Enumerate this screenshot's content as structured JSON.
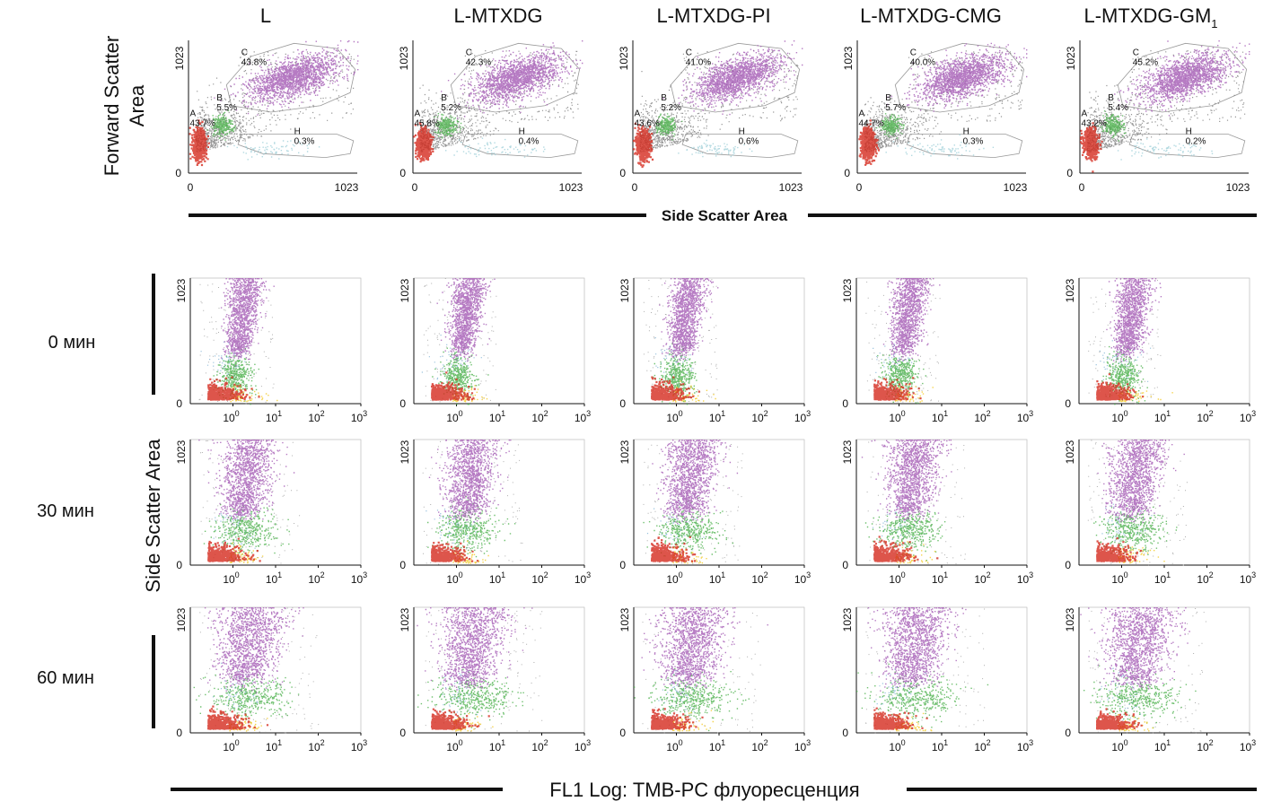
{
  "figure": {
    "headers": [
      "L",
      "L-MTXDG",
      "L-MTXDG-PI",
      "L-MTXDG-CMG",
      "L-MTXDG-GM"
    ],
    "last_header_subscript": "1",
    "scatter_ylabel_line1": "Forward Scatter",
    "scatter_ylabel_line2": "Area",
    "scatter_xlabel": "Side Scatter Area",
    "fl_ylabel": "Side Scatter Area",
    "fl_xlabel": "FL1 Log: TMB-PC флуоресценция",
    "time_rows": [
      "0 мин",
      "30 мин",
      "60 мин"
    ]
  },
  "chart_data": [
    {
      "type": "scatter",
      "panel": "fsc-ssc",
      "x": {
        "label": "Side Scatter Area",
        "range": [
          0,
          1023
        ],
        "ticks": [
          "0",
          "1023"
        ]
      },
      "y": {
        "label": "Forward Scatter Area",
        "range": [
          0,
          1023
        ],
        "ticks": [
          "0",
          "1023"
        ]
      },
      "conditions": [
        {
          "name": "L",
          "gates": [
            {
              "label": "A",
              "percent": "43.7%"
            },
            {
              "label": "B",
              "percent": "5.5%"
            },
            {
              "label": "C",
              "percent": "43.8%"
            },
            {
              "label": "H",
              "percent": "0.3%"
            }
          ]
        },
        {
          "name": "L-MTXDG",
          "gates": [
            {
              "label": "A",
              "percent": "45.8%"
            },
            {
              "label": "B",
              "percent": "5.2%"
            },
            {
              "label": "C",
              "percent": "42.3%"
            },
            {
              "label": "H",
              "percent": "0.4%"
            }
          ]
        },
        {
          "name": "L-MTXDG-PI",
          "gates": [
            {
              "label": "A",
              "percent": "43.6%"
            },
            {
              "label": "B",
              "percent": "5.2%"
            },
            {
              "label": "C",
              "percent": "41.0%"
            },
            {
              "label": "H",
              "percent": "0.6%"
            }
          ]
        },
        {
          "name": "L-MTXDG-CMG",
          "gates": [
            {
              "label": "A",
              "percent": "44.7%"
            },
            {
              "label": "B",
              "percent": "5.7%"
            },
            {
              "label": "C",
              "percent": "40.0%"
            },
            {
              "label": "H",
              "percent": "0.3%"
            }
          ]
        },
        {
          "name": "L-MTXDG-GM1",
          "gates": [
            {
              "label": "A",
              "percent": "43.2%"
            },
            {
              "label": "B",
              "percent": "5.4%"
            },
            {
              "label": "C",
              "percent": "45.2%"
            },
            {
              "label": "H",
              "percent": "0.2%"
            }
          ]
        }
      ],
      "populations": [
        {
          "gate": "A",
          "color": "#d42a1e",
          "center": [
            60,
            230
          ],
          "spread": [
            40,
            110
          ]
        },
        {
          "gate": "B",
          "color": "#4bb04b",
          "center": [
            200,
            370
          ],
          "spread": [
            60,
            70
          ]
        },
        {
          "gate": "C",
          "color": "#a45ab4",
          "center": [
            630,
            740
          ],
          "spread": [
            230,
            150
          ]
        },
        {
          "gate": "H",
          "color": "#9fcfd8",
          "center": [
            500,
            190
          ],
          "spread": [
            250,
            60
          ]
        }
      ]
    },
    {
      "type": "scatter",
      "panel": "fl1-ssc",
      "x": {
        "label": "FL1 Log: TMB-PC флуоресценция",
        "scale": "log",
        "range": [
          0.1,
          1000
        ],
        "ticks": [
          {
            "base": "10",
            "exp": "0"
          },
          {
            "base": "10",
            "exp": "1"
          },
          {
            "base": "10",
            "exp": "2"
          },
          {
            "base": "10",
            "exp": "3"
          }
        ]
      },
      "y": {
        "label": "Side Scatter Area",
        "range": [
          0,
          1023
        ],
        "ticks": [
          "0",
          "1023"
        ]
      },
      "rows": [
        "0 мин",
        "30 мин",
        "60 мин"
      ],
      "populations": [
        {
          "gate": "A",
          "color": "#d42a1e"
        },
        {
          "gate": "B",
          "color": "#4bb04b"
        },
        {
          "gate": "C",
          "color": "#a45ab4"
        },
        {
          "gate": "E",
          "color": "#f2c820"
        },
        {
          "gate": "H",
          "color": "#7fb3d5"
        }
      ],
      "purple_cloud_x_center_log10": [
        0.2,
        0.3,
        0.35
      ]
    }
  ]
}
